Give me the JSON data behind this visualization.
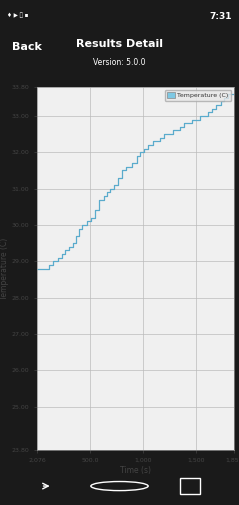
{
  "title": "Results Detail",
  "subtitle": "Version: 5.0.0",
  "header_bg": "#3d6f8e",
  "header_text_color": "#ffffff",
  "back_text": "Back",
  "app_bg": "#1a1a1a",
  "plot_bg": "#f0f0f0",
  "outer_bg": "#d8d8d8",
  "grid_color": "#bbbbbb",
  "line_color": "#5aabcc",
  "legend_label": "Temperature (C)",
  "legend_patch_color": "#7ec8e3",
  "legend_bg": "#e8e8e8",
  "ylabel": "Temperature (C)",
  "xlabel": "Time (s)",
  "ylim": [
    23.8,
    33.8
  ],
  "xlim": [
    2.076,
    1859
  ],
  "ytick_vals": [
    23.8,
    25.0,
    26.0,
    27.0,
    28.0,
    29.0,
    30.0,
    31.0,
    32.0,
    33.0,
    33.8
  ],
  "ytick_labels": [
    "23.80",
    "25.00",
    "26.00",
    "27.00",
    "28.00",
    "29.00",
    "30.00",
    "31.00",
    "32.00",
    "33.00",
    "33.80"
  ],
  "xtick_vals": [
    2.076,
    500.0,
    1000,
    1500,
    1859
  ],
  "xtick_labels": [
    "2,076",
    "500.0",
    "1,000",
    "1,500",
    "1,859"
  ],
  "time_data": [
    2.076,
    60,
    110,
    150,
    200,
    240,
    270,
    300,
    340,
    370,
    400,
    430,
    470,
    510,
    550,
    590,
    630,
    660,
    690,
    730,
    760,
    800,
    840,
    870,
    900,
    940,
    970,
    1010,
    1050,
    1090,
    1120,
    1160,
    1200,
    1240,
    1280,
    1310,
    1350,
    1390,
    1420,
    1460,
    1500,
    1540,
    1570,
    1610,
    1650,
    1690,
    1730,
    1760,
    1800,
    1840,
    1859
  ],
  "temp_data": [
    28.8,
    28.8,
    28.9,
    29.0,
    29.1,
    29.2,
    29.3,
    29.4,
    29.5,
    29.7,
    29.9,
    30.0,
    30.1,
    30.2,
    30.4,
    30.7,
    30.8,
    30.9,
    31.0,
    31.1,
    31.3,
    31.5,
    31.6,
    31.6,
    31.7,
    31.9,
    32.0,
    32.1,
    32.2,
    32.3,
    32.3,
    32.4,
    32.5,
    32.5,
    32.6,
    32.6,
    32.7,
    32.8,
    32.8,
    32.9,
    32.9,
    33.0,
    33.0,
    33.1,
    33.2,
    33.3,
    33.4,
    33.5,
    33.6,
    33.6,
    33.6
  ],
  "axis_text_color": "#444444",
  "tick_color": "#444444",
  "tick_fontsize": 4.5,
  "label_fontsize": 5.5,
  "status_time": "7:31"
}
